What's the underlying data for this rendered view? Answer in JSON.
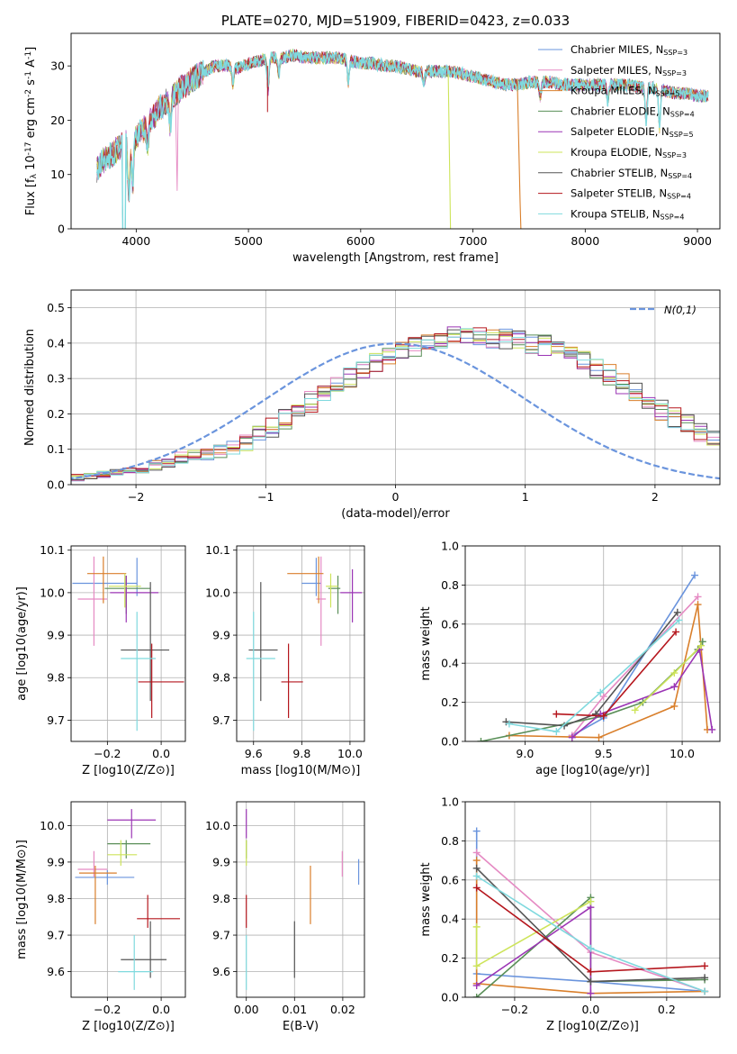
{
  "palette": [
    "#6a94dd",
    "#e58ac3",
    "#d97f2b",
    "#5a8f58",
    "#9b35b5",
    "#cde45a",
    "#555555",
    "#b5161d",
    "#7fd9de"
  ],
  "chart_data": [
    {
      "id": "spectrum",
      "type": "line",
      "title": "PLATE=0270, MJD=51909, FIBERID=0423, z=0.033",
      "xlabel": "wavelength [Angstrom, rest frame]",
      "ylabel": "Flux [f_λ 10^-17 erg cm^-2 s^-1 A^-1]",
      "xlim": [
        3420,
        9200
      ],
      "ylim": [
        0,
        36
      ],
      "xticks": [
        4000,
        5000,
        6000,
        7000,
        8000,
        9000
      ],
      "yticks": [
        0,
        10,
        20,
        30
      ],
      "grid": false,
      "legend_position": "top-right",
      "continuum": {
        "x": [
          3650,
          3700,
          3800,
          3900,
          3950,
          4000,
          4100,
          4200,
          4300,
          4400,
          4500,
          4600,
          4700,
          4800,
          4900,
          5000,
          5100,
          5200,
          5300,
          5400,
          5500,
          5600,
          5700,
          5800,
          5900,
          6000,
          6100,
          6200,
          6300,
          6400,
          6500,
          6600,
          6700,
          6800,
          6900,
          7000,
          7100,
          7200,
          7300,
          7400,
          7500,
          7600,
          7700,
          7800,
          7900,
          8000,
          8100,
          8200,
          8300,
          8400,
          8500,
          8600,
          8700,
          8800,
          8900,
          9000,
          9100
        ],
        "y": [
          11,
          12.5,
          14,
          16,
          15,
          17,
          19,
          22,
          24,
          26,
          27.5,
          29,
          30,
          30,
          29.5,
          30.5,
          31,
          31.5,
          31.5,
          32,
          31.5,
          31.5,
          31.5,
          31.5,
          31,
          30.5,
          30.5,
          30,
          30,
          29.5,
          29,
          29,
          29,
          29,
          28.5,
          28,
          27.5,
          27,
          26.5,
          26.5,
          27,
          27,
          27,
          26.5,
          26.5,
          26.5,
          26.5,
          26.5,
          26.5,
          26.5,
          26,
          26,
          25.5,
          25,
          25,
          24.5,
          24.5
        ]
      },
      "legend": [
        {
          "label": "Chabrier MILES, N_SSP=3"
        },
        {
          "label": "Salpeter MILES, N_SSP=3"
        },
        {
          "label": "Kroupa MILES, N_SSP=5"
        },
        {
          "label": "Chabrier ELODIE, N_SSP=4"
        },
        {
          "label": "Salpeter ELODIE, N_SSP=5"
        },
        {
          "label": "Kroupa ELODIE, N_SSP=3"
        },
        {
          "label": "Chabrier STELIB, N_SSP=4"
        },
        {
          "label": "Salpeter STELIB, N_SSP=4"
        },
        {
          "label": "Kroupa STELIB, N_SSP=4"
        }
      ]
    },
    {
      "id": "residuals",
      "type": "line",
      "xlabel": "(data-model)/error",
      "ylabel": "Normed distribution",
      "xlim": [
        -2.5,
        2.5
      ],
      "ylim": [
        0,
        0.55
      ],
      "xticks": [
        -2,
        -1,
        0,
        1,
        2
      ],
      "yticks": [
        0.0,
        0.1,
        0.2,
        0.3,
        0.4,
        0.5
      ],
      "grid": true,
      "legend_position": "top-right",
      "legend": [
        {
          "label": "N(0,1)"
        }
      ],
      "bin_width": 0.1,
      "base": [
        0.02,
        0.025,
        0.03,
        0.035,
        0.04,
        0.045,
        0.055,
        0.065,
        0.075,
        0.08,
        0.085,
        0.095,
        0.105,
        0.12,
        0.14,
        0.16,
        0.185,
        0.21,
        0.235,
        0.26,
        0.285,
        0.305,
        0.325,
        0.345,
        0.36,
        0.38,
        0.39,
        0.395,
        0.405,
        0.42,
        0.43,
        0.425,
        0.415,
        0.41,
        0.405,
        0.4,
        0.395,
        0.38,
        0.365,
        0.35,
        0.33,
        0.31,
        0.285,
        0.26,
        0.235,
        0.21,
        0.19,
        0.17,
        0.15,
        0.135,
        0.12,
        0.105,
        0.095,
        0.085,
        0.075,
        0.065,
        0.055,
        0.045,
        0.04,
        0.035,
        0.03,
        0.03,
        0.025,
        0.025,
        0.025,
        0.025,
        0.02,
        0.02,
        0.02,
        0.02
      ],
      "bin_start": -2.5
    },
    {
      "id": "age-vs-z",
      "type": "scatter",
      "xlabel": "Z [log10(Z/Z⊙)]",
      "ylabel": "age [log10(age/yr)]",
      "xlim": [
        -0.335,
        0.09
      ],
      "ylim": [
        9.65,
        10.11
      ],
      "xticks": [
        -0.2,
        0.0
      ],
      "yticks": [
        9.7,
        9.8,
        9.9,
        10.0,
        10.1
      ],
      "grid": true,
      "points": [
        {
          "x": -0.09,
          "y": 10.022,
          "xerr": [
            0.24,
            0.0
          ],
          "yerr": [
            0.03,
            0.06
          ]
        },
        {
          "x": -0.25,
          "y": 9.985,
          "xerr": [
            0.06,
            0.05
          ],
          "yerr": [
            0.11,
            0.1
          ]
        },
        {
          "x": -0.215,
          "y": 10.045,
          "xerr": [
            0.06,
            0.085
          ],
          "yerr": [
            0.07,
            0.04
          ]
        },
        {
          "x": -0.13,
          "y": 10.01,
          "xerr": [
            0.08,
            0.09
          ],
          "yerr": [
            0.06,
            0.03
          ]
        },
        {
          "x": -0.13,
          "y": 10.0,
          "xerr": [
            0.06,
            0.12
          ],
          "yerr": [
            0.07,
            0.04
          ]
        },
        {
          "x": -0.135,
          "y": 10.015,
          "xerr": [
            0.06,
            0.06
          ],
          "yerr": [
            0.05,
            0.03
          ]
        },
        {
          "x": -0.04,
          "y": 9.865,
          "xerr": [
            0.11,
            0.07
          ],
          "yerr": [
            0.12,
            0.16
          ]
        },
        {
          "x": -0.035,
          "y": 9.79,
          "xerr": [
            0.05,
            0.12
          ],
          "yerr": [
            0.085,
            0.09
          ]
        },
        {
          "x": -0.09,
          "y": 9.845,
          "xerr": [
            0.06,
            0.07
          ],
          "yerr": [
            0.17,
            0.11
          ]
        }
      ]
    },
    {
      "id": "age-vs-mass",
      "type": "scatter",
      "xlabel": "mass [log10(M/M⊙)]",
      "ylabel": "",
      "xlim": [
        9.53,
        10.06
      ],
      "ylim": [
        9.65,
        10.11
      ],
      "xticks": [
        9.6,
        9.8,
        10.0
      ],
      "yticks": [
        9.7,
        9.8,
        9.9,
        10.0,
        10.1
      ],
      "grid": true,
      "points": [
        {
          "x": 9.86,
          "y": 10.022,
          "xerr": [
            0.06,
            0.02
          ],
          "yerr": [
            0.03,
            0.06
          ]
        },
        {
          "x": 9.88,
          "y": 9.985,
          "xerr": [
            0.02,
            0.02
          ],
          "yerr": [
            0.11,
            0.1
          ]
        },
        {
          "x": 9.87,
          "y": 10.045,
          "xerr": [
            0.13,
            0.02
          ],
          "yerr": [
            0.07,
            0.04
          ]
        },
        {
          "x": 9.95,
          "y": 10.01,
          "xerr": [
            0.04,
            0.01
          ],
          "yerr": [
            0.06,
            0.03
          ]
        },
        {
          "x": 10.01,
          "y": 10.0,
          "xerr": [
            0.05,
            0.04
          ],
          "yerr": [
            0.07,
            0.055
          ]
        },
        {
          "x": 9.92,
          "y": 10.015,
          "xerr": [
            0.02,
            0.03
          ],
          "yerr": [
            0.05,
            0.03
          ]
        },
        {
          "x": 9.63,
          "y": 9.865,
          "xerr": [
            0.05,
            0.07
          ],
          "yerr": [
            0.12,
            0.16
          ]
        },
        {
          "x": 9.745,
          "y": 9.79,
          "xerr": [
            0.03,
            0.06
          ],
          "yerr": [
            0.085,
            0.09
          ]
        },
        {
          "x": 9.6,
          "y": 9.845,
          "xerr": [
            0.03,
            0.09
          ],
          "yerr": [
            0.17,
            0.11
          ]
        }
      ]
    },
    {
      "id": "massweight-vs-age",
      "type": "line",
      "xlabel": "age [log10(age/yr)]",
      "ylabel": "mass weight",
      "xlim": [
        8.62,
        10.24
      ],
      "ylim": [
        0,
        1.0
      ],
      "xticks": [
        9.0,
        9.5,
        10.0
      ],
      "yticks": [
        0.0,
        0.2,
        0.4,
        0.6,
        0.8,
        1.0
      ],
      "grid": true,
      "series": [
        {
          "x": [
            9.3,
            9.5,
            10.08
          ],
          "y": [
            0.03,
            0.12,
            0.85
          ]
        },
        {
          "x": [
            9.3,
            9.5,
            10.1
          ],
          "y": [
            0.03,
            0.23,
            0.74
          ]
        },
        {
          "x": [
            8.9,
            9.47,
            9.95,
            10.1,
            10.16
          ],
          "y": [
            0.03,
            0.02,
            0.18,
            0.7,
            0.06
          ]
        },
        {
          "x": [
            8.72,
            9.5,
            9.75,
            10.1,
            10.13
          ],
          "y": [
            0.0,
            0.13,
            0.2,
            0.47,
            0.51
          ]
        },
        {
          "x": [
            9.3,
            9.48,
            9.95,
            10.11,
            10.19
          ],
          "y": [
            0.02,
            0.14,
            0.28,
            0.47,
            0.06
          ]
        },
        {
          "x": [
            9.7,
            9.95,
            10.12
          ],
          "y": [
            0.16,
            0.35,
            0.49
          ]
        },
        {
          "x": [
            8.88,
            9.25,
            9.45,
            9.97
          ],
          "y": [
            0.1,
            0.08,
            0.14,
            0.66
          ]
        },
        {
          "x": [
            9.2,
            9.5,
            9.96
          ],
          "y": [
            0.14,
            0.13,
            0.56
          ]
        },
        {
          "x": [
            8.9,
            9.2,
            9.48,
            9.98
          ],
          "y": [
            0.09,
            0.05,
            0.25,
            0.62
          ]
        }
      ]
    },
    {
      "id": "mass-vs-z",
      "type": "scatter",
      "xlabel": "Z [log10(Z/Z⊙)]",
      "ylabel": "mass [log10(M/M⊙)]",
      "xlim": [
        -0.335,
        0.09
      ],
      "ylim": [
        9.53,
        10.065
      ],
      "xticks": [
        -0.2,
        0.0
      ],
      "yticks": [
        9.6,
        9.7,
        9.8,
        9.9,
        10.0
      ],
      "grid": true,
      "points": [
        {
          "x": -0.2,
          "y": 9.858,
          "xerr": [
            0.12,
            0.1
          ],
          "yerr": [
            0.02,
            0.02
          ]
        },
        {
          "x": -0.25,
          "y": 9.88,
          "xerr": [
            0.06,
            0.05
          ],
          "yerr": [
            0.02,
            0.05
          ]
        },
        {
          "x": -0.245,
          "y": 9.87,
          "xerr": [
            0.06,
            0.08
          ],
          "yerr": [
            0.14,
            0.02
          ]
        },
        {
          "x": -0.13,
          "y": 9.95,
          "xerr": [
            0.07,
            0.09
          ],
          "yerr": [
            0.04,
            0.01
          ]
        },
        {
          "x": -0.11,
          "y": 10.015,
          "xerr": [
            0.09,
            0.09
          ],
          "yerr": [
            0.05,
            0.03
          ]
        },
        {
          "x": -0.15,
          "y": 9.92,
          "xerr": [
            0.05,
            0.06
          ],
          "yerr": [
            0.03,
            0.04
          ]
        },
        {
          "x": -0.04,
          "y": 9.633,
          "xerr": [
            0.11,
            0.06
          ],
          "yerr": [
            0.05,
            0.105
          ]
        },
        {
          "x": -0.05,
          "y": 9.745,
          "xerr": [
            0.04,
            0.12
          ],
          "yerr": [
            0.025,
            0.065
          ]
        },
        {
          "x": -0.1,
          "y": 9.6,
          "xerr": [
            0.06,
            0.07
          ],
          "yerr": [
            0.05,
            0.1
          ]
        }
      ]
    },
    {
      "id": "mass-vs-ebv",
      "type": "scatter",
      "xlabel": "E(B-V)",
      "ylabel": "",
      "xlim": [
        -0.002,
        0.0245
      ],
      "ylim": [
        9.53,
        10.065
      ],
      "xticks": [
        0.0,
        0.01,
        0.02
      ],
      "xticklabels": [
        "0.00",
        "0.01",
        "0.02"
      ],
      "yticks": [
        9.6,
        9.7,
        9.8,
        9.9,
        10.0
      ],
      "grid": true,
      "points": [
        {
          "x": 0.0233,
          "y": 9.858,
          "xerr": [
            0,
            0
          ],
          "yerr": [
            0.02,
            0.05
          ]
        },
        {
          "x": 0.0199,
          "y": 9.88,
          "xerr": [
            0,
            0
          ],
          "yerr": [
            0.02,
            0.05
          ]
        },
        {
          "x": 0.0133,
          "y": 9.87,
          "xerr": [
            0,
            0
          ],
          "yerr": [
            0.14,
            0.02
          ]
        },
        {
          "x": 0.0,
          "y": 9.95,
          "xerr": [
            0,
            0
          ],
          "yerr": [
            0.04,
            0.01
          ]
        },
        {
          "x": 0.0,
          "y": 10.015,
          "xerr": [
            0,
            0
          ],
          "yerr": [
            0.05,
            0.03
          ]
        },
        {
          "x": 0.0,
          "y": 9.92,
          "xerr": [
            0,
            0
          ],
          "yerr": [
            0.03,
            0.04
          ]
        },
        {
          "x": 0.01,
          "y": 9.663,
          "xerr": [
            0,
            0
          ],
          "yerr": [
            0.08,
            0.075
          ]
        },
        {
          "x": 0.0,
          "y": 9.745,
          "xerr": [
            0,
            0
          ],
          "yerr": [
            0.025,
            0.065
          ]
        },
        {
          "x": 0.0,
          "y": 9.6,
          "xerr": [
            0,
            0
          ],
          "yerr": [
            0.05,
            0.1
          ]
        }
      ]
    },
    {
      "id": "massweight-vs-z",
      "type": "line",
      "xlabel": "Z [log10(Z/Z⊙)]",
      "ylabel": "mass weight",
      "xlim": [
        -0.33,
        0.34
      ],
      "ylim": [
        0,
        1.0
      ],
      "xticks": [
        -0.2,
        0.0,
        0.2
      ],
      "yticks": [
        0.0,
        0.2,
        0.4,
        0.6,
        0.8,
        1.0
      ],
      "grid": true,
      "series": [
        {
          "x": [
            -0.3,
            -0.3,
            0.0,
            0.3
          ],
          "y": [
            0.85,
            0.12,
            0.08,
            0.03
          ]
        },
        {
          "x": [
            -0.3,
            0.0,
            0.3
          ],
          "y": [
            0.74,
            0.23,
            0.03
          ]
        },
        {
          "x": [
            -0.3,
            -0.3,
            0.0,
            0.3
          ],
          "y": [
            0.7,
            0.07,
            0.02,
            0.03
          ]
        },
        {
          "x": [
            -0.3,
            0.0,
            0.0,
            0.3
          ],
          "y": [
            0.0,
            0.51,
            0.08,
            0.09
          ]
        },
        {
          "x": [
            -0.3,
            0.0,
            0.0
          ],
          "y": [
            0.06,
            0.46,
            0.02
          ]
        },
        {
          "x": [
            -0.3,
            -0.3,
            0.0
          ],
          "y": [
            0.36,
            0.16,
            0.49
          ]
        },
        {
          "x": [
            -0.3,
            0.0,
            0.3
          ],
          "y": [
            0.66,
            0.08,
            0.1
          ]
        },
        {
          "x": [
            -0.3,
            0.0,
            0.3
          ],
          "y": [
            0.56,
            0.13,
            0.16
          ]
        },
        {
          "x": [
            -0.3,
            0.0,
            0.3
          ],
          "y": [
            0.62,
            0.25,
            0.03
          ]
        }
      ]
    }
  ]
}
